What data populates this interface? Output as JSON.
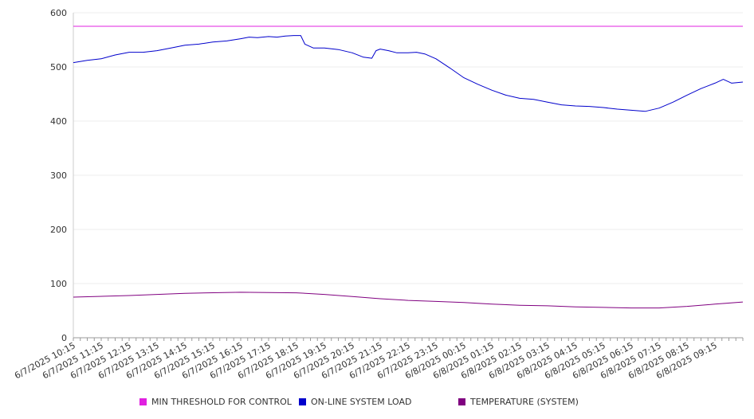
{
  "chart_data": {
    "type": "line",
    "title": "",
    "xlabel": "",
    "ylabel": "",
    "ylim": [
      0,
      600
    ],
    "yticks": [
      0,
      100,
      200,
      300,
      400,
      500,
      600
    ],
    "grid": true,
    "legend_position": "bottom",
    "x_tick_labels": [
      "6/7/2025 10:15",
      "6/7/2025 11:15",
      "6/7/2025 12:15",
      "6/7/2025 13:15",
      "6/7/2025 14:15",
      "6/7/2025 15:15",
      "6/7/2025 16:15",
      "6/7/2025 17:15",
      "6/7/2025 18:15",
      "6/7/2025 19:15",
      "6/7/2025 20:15",
      "6/7/2025 21:15",
      "6/7/2025 22:15",
      "6/7/2025 23:15",
      "6/8/2025 00:15",
      "6/8/2025 01:15",
      "6/8/2025 02:15",
      "6/8/2025 03:15",
      "6/8/2025 04:15",
      "6/8/2025 05:15",
      "6/8/2025 06:15",
      "6/8/2025 07:15",
      "6/8/2025 08:15",
      "6/8/2025 09:15"
    ],
    "x_hours_range": [
      0,
      24
    ],
    "series": [
      {
        "name": "MIN THRESHOLD FOR CONTROL",
        "color": "#e020e0",
        "points": [
          [
            0,
            575
          ],
          [
            24,
            575
          ]
        ]
      },
      {
        "name": "ON-LINE SYSTEM LOAD",
        "color": "#0000cc",
        "points": [
          [
            0,
            508
          ],
          [
            0.5,
            512
          ],
          [
            1,
            515
          ],
          [
            1.5,
            522
          ],
          [
            2,
            527
          ],
          [
            2.5,
            527
          ],
          [
            3,
            530
          ],
          [
            3.5,
            535
          ],
          [
            4,
            540
          ],
          [
            4.5,
            542
          ],
          [
            5,
            546
          ],
          [
            5.5,
            548
          ],
          [
            6,
            552
          ],
          [
            6.3,
            555
          ],
          [
            6.6,
            554
          ],
          [
            7,
            556
          ],
          [
            7.3,
            555
          ],
          [
            7.6,
            557
          ],
          [
            7.9,
            558
          ],
          [
            8.15,
            558
          ],
          [
            8.3,
            542
          ],
          [
            8.6,
            535
          ],
          [
            9,
            535
          ],
          [
            9.5,
            532
          ],
          [
            10,
            526
          ],
          [
            10.4,
            518
          ],
          [
            10.7,
            516
          ],
          [
            10.85,
            530
          ],
          [
            11,
            533
          ],
          [
            11.3,
            530
          ],
          [
            11.6,
            526
          ],
          [
            12,
            526
          ],
          [
            12.3,
            527
          ],
          [
            12.6,
            524
          ],
          [
            13,
            515
          ],
          [
            13.5,
            498
          ],
          [
            14,
            480
          ],
          [
            14.5,
            468
          ],
          [
            15,
            457
          ],
          [
            15.5,
            448
          ],
          [
            16,
            442
          ],
          [
            16.5,
            440
          ],
          [
            17,
            435
          ],
          [
            17.5,
            430
          ],
          [
            18,
            428
          ],
          [
            18.5,
            427
          ],
          [
            19,
            425
          ],
          [
            19.5,
            422
          ],
          [
            20,
            420
          ],
          [
            20.5,
            418
          ],
          [
            21,
            424
          ],
          [
            21.5,
            435
          ],
          [
            22,
            448
          ],
          [
            22.5,
            460
          ],
          [
            23,
            470
          ],
          [
            23.3,
            477
          ],
          [
            23.6,
            470
          ],
          [
            24,
            472
          ]
        ]
      },
      {
        "name": "TEMPERATURE (SYSTEM)",
        "color": "#800080",
        "points": [
          [
            0,
            75
          ],
          [
            2,
            78
          ],
          [
            4,
            82
          ],
          [
            6,
            84
          ],
          [
            8,
            83
          ],
          [
            9,
            80
          ],
          [
            10,
            76
          ],
          [
            11,
            72
          ],
          [
            12,
            69
          ],
          [
            13,
            67
          ],
          [
            14,
            65
          ],
          [
            15,
            62
          ],
          [
            16,
            60
          ],
          [
            17,
            59
          ],
          [
            18,
            57
          ],
          [
            19,
            56
          ],
          [
            20,
            55
          ],
          [
            21,
            55
          ],
          [
            22,
            58
          ],
          [
            23,
            62
          ],
          [
            24,
            66
          ]
        ]
      }
    ]
  }
}
